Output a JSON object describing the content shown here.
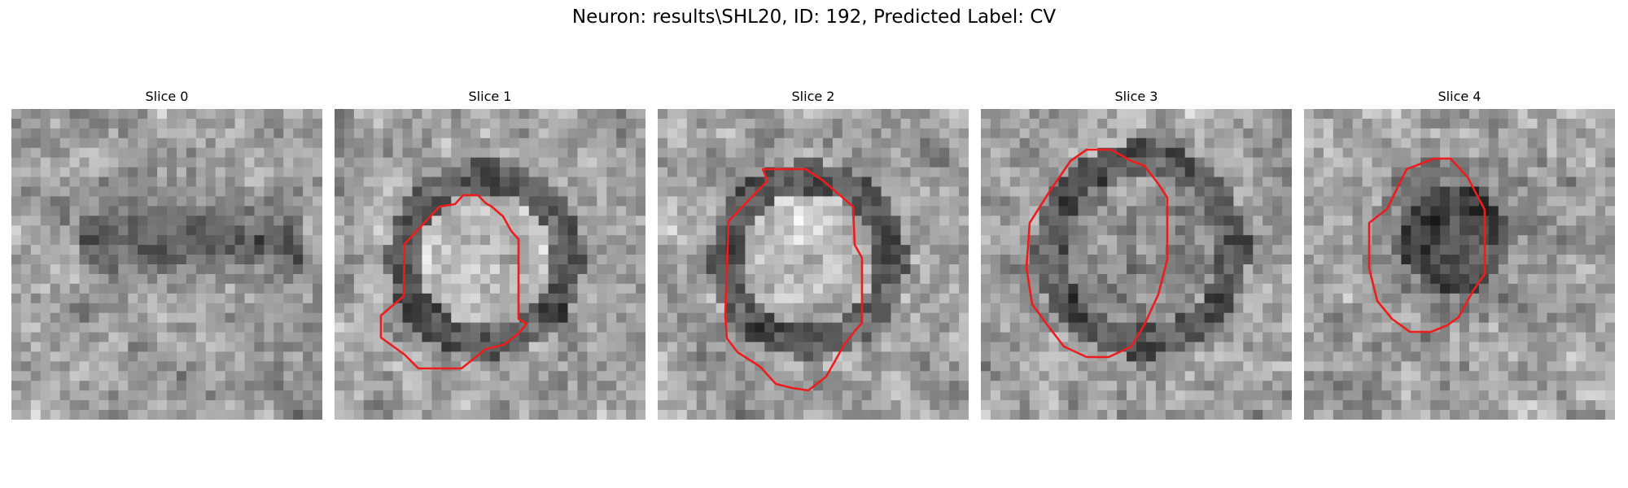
{
  "figure": {
    "title": "Neuron: results\\SHL20, ID: 192, Predicted Label: CV"
  },
  "slices": [
    {
      "title": "Slice 0",
      "has_contour": false,
      "vesicle": "none"
    },
    {
      "title": "Slice 1",
      "has_contour": true,
      "vesicle": "light"
    },
    {
      "title": "Slice 2",
      "has_contour": true,
      "vesicle": "light"
    },
    {
      "title": "Slice 3",
      "has_contour": true,
      "vesicle": "medium"
    },
    {
      "title": "Slice 4",
      "has_contour": true,
      "vesicle": "dark"
    }
  ],
  "colors": {
    "contour": "#ee1c1c",
    "background": "#ffffff"
  }
}
